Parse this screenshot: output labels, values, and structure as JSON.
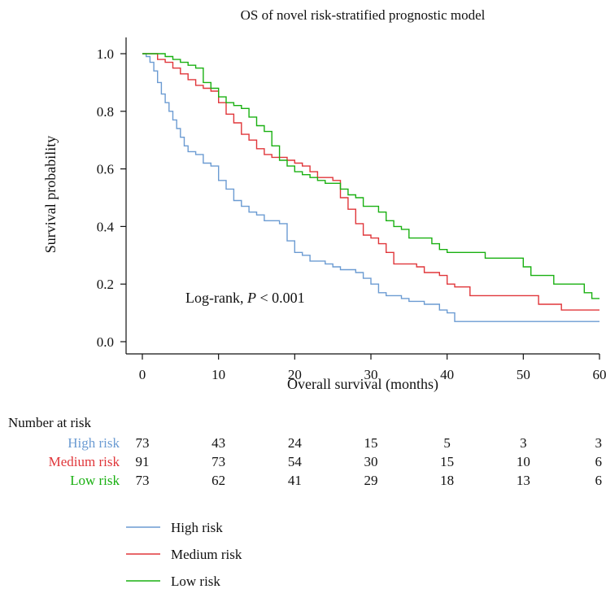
{
  "chart_data": {
    "type": "line",
    "subtype": "kaplan-meier-survival",
    "title": "OS of novel risk-stratified prognostic model",
    "xlabel": "Overall survival (months)",
    "ylabel": "Survival probability",
    "xlim": [
      0,
      60
    ],
    "ylim": [
      0,
      1
    ],
    "x_ticks": [
      0,
      10,
      20,
      30,
      40,
      50,
      60
    ],
    "y_ticks": [
      "0.0",
      "0.2",
      "0.4",
      "0.6",
      "0.8",
      "1.0"
    ],
    "grid": false,
    "annotation": {
      "prefix": "Log-rank, ",
      "italic": "P",
      "suffix": " < 0.001"
    },
    "legend_position": "bottom-left",
    "series": [
      {
        "name": "High risk",
        "color": "#6b9bd2",
        "points": [
          [
            0,
            1.0
          ],
          [
            0.5,
            0.99
          ],
          [
            1,
            0.97
          ],
          [
            1.5,
            0.94
          ],
          [
            2,
            0.9
          ],
          [
            2.5,
            0.86
          ],
          [
            3,
            0.83
          ],
          [
            3.5,
            0.8
          ],
          [
            4,
            0.77
          ],
          [
            4.5,
            0.74
          ],
          [
            5,
            0.71
          ],
          [
            5.5,
            0.68
          ],
          [
            6,
            0.66
          ],
          [
            7,
            0.65
          ],
          [
            8,
            0.62
          ],
          [
            9,
            0.61
          ],
          [
            10,
            0.56
          ],
          [
            11,
            0.53
          ],
          [
            12,
            0.49
          ],
          [
            13,
            0.47
          ],
          [
            14,
            0.45
          ],
          [
            15,
            0.44
          ],
          [
            16,
            0.42
          ],
          [
            18,
            0.41
          ],
          [
            19,
            0.35
          ],
          [
            20,
            0.31
          ],
          [
            21,
            0.3
          ],
          [
            22,
            0.28
          ],
          [
            24,
            0.27
          ],
          [
            25,
            0.26
          ],
          [
            26,
            0.25
          ],
          [
            28,
            0.24
          ],
          [
            29,
            0.22
          ],
          [
            30,
            0.2
          ],
          [
            31,
            0.17
          ],
          [
            32,
            0.16
          ],
          [
            34,
            0.15
          ],
          [
            35,
            0.14
          ],
          [
            37,
            0.13
          ],
          [
            39,
            0.11
          ],
          [
            40,
            0.1
          ],
          [
            41,
            0.07
          ],
          [
            60,
            0.07
          ]
        ]
      },
      {
        "name": "Medium risk",
        "color": "#e0363a",
        "points": [
          [
            0,
            1.0
          ],
          [
            2,
            0.98
          ],
          [
            3,
            0.97
          ],
          [
            4,
            0.95
          ],
          [
            5,
            0.93
          ],
          [
            6,
            0.91
          ],
          [
            7,
            0.89
          ],
          [
            8,
            0.88
          ],
          [
            9,
            0.87
          ],
          [
            10,
            0.83
          ],
          [
            11,
            0.79
          ],
          [
            12,
            0.76
          ],
          [
            13,
            0.72
          ],
          [
            14,
            0.7
          ],
          [
            15,
            0.67
          ],
          [
            16,
            0.65
          ],
          [
            17,
            0.64
          ],
          [
            18,
            0.64
          ],
          [
            19,
            0.63
          ],
          [
            20,
            0.62
          ],
          [
            21,
            0.61
          ],
          [
            22,
            0.59
          ],
          [
            23,
            0.57
          ],
          [
            24,
            0.57
          ],
          [
            25,
            0.56
          ],
          [
            26,
            0.5
          ],
          [
            27,
            0.46
          ],
          [
            28,
            0.41
          ],
          [
            29,
            0.37
          ],
          [
            30,
            0.36
          ],
          [
            31,
            0.34
          ],
          [
            32,
            0.31
          ],
          [
            33,
            0.27
          ],
          [
            35,
            0.27
          ],
          [
            36,
            0.26
          ],
          [
            37,
            0.24
          ],
          [
            39,
            0.23
          ],
          [
            40,
            0.2
          ],
          [
            41,
            0.19
          ],
          [
            43,
            0.16
          ],
          [
            47,
            0.16
          ],
          [
            51,
            0.16
          ],
          [
            52,
            0.13
          ],
          [
            54,
            0.13
          ],
          [
            55,
            0.11
          ],
          [
            60,
            0.11
          ]
        ]
      },
      {
        "name": "Low risk",
        "color": "#19b011",
        "points": [
          [
            0,
            1.0
          ],
          [
            3,
            0.99
          ],
          [
            4,
            0.98
          ],
          [
            5,
            0.97
          ],
          [
            6,
            0.96
          ],
          [
            7,
            0.95
          ],
          [
            8,
            0.9
          ],
          [
            9,
            0.88
          ],
          [
            10,
            0.85
          ],
          [
            11,
            0.83
          ],
          [
            12,
            0.82
          ],
          [
            13,
            0.81
          ],
          [
            14,
            0.78
          ],
          [
            15,
            0.75
          ],
          [
            16,
            0.73
          ],
          [
            17,
            0.68
          ],
          [
            18,
            0.63
          ],
          [
            19,
            0.61
          ],
          [
            20,
            0.59
          ],
          [
            21,
            0.58
          ],
          [
            22,
            0.57
          ],
          [
            23,
            0.56
          ],
          [
            24,
            0.55
          ],
          [
            26,
            0.53
          ],
          [
            27,
            0.51
          ],
          [
            28,
            0.5
          ],
          [
            29,
            0.47
          ],
          [
            30,
            0.47
          ],
          [
            31,
            0.45
          ],
          [
            32,
            0.42
          ],
          [
            33,
            0.4
          ],
          [
            34,
            0.39
          ],
          [
            35,
            0.36
          ],
          [
            38,
            0.34
          ],
          [
            39,
            0.32
          ],
          [
            40,
            0.31
          ],
          [
            44,
            0.31
          ],
          [
            45,
            0.29
          ],
          [
            49,
            0.29
          ],
          [
            50,
            0.26
          ],
          [
            51,
            0.23
          ],
          [
            54,
            0.2
          ],
          [
            58,
            0.17
          ],
          [
            59,
            0.15
          ],
          [
            60,
            0.15
          ]
        ]
      }
    ],
    "number_at_risk": {
      "title": "Number at risk",
      "times": [
        0,
        10,
        20,
        30,
        40,
        50,
        60
      ],
      "rows": [
        {
          "label": "High risk",
          "color": "#6b9bd2",
          "values": [
            "73",
            "43",
            "24",
            "15",
            "5",
            "3",
            "3"
          ]
        },
        {
          "label": "Medium risk",
          "color": "#e0363a",
          "values": [
            "91",
            "73",
            "54",
            "30",
            "15",
            "10",
            "6"
          ]
        },
        {
          "label": "Low risk",
          "color": "#19b011",
          "values": [
            "73",
            "62",
            "41",
            "29",
            "18",
            "13",
            "6"
          ]
        }
      ]
    }
  }
}
